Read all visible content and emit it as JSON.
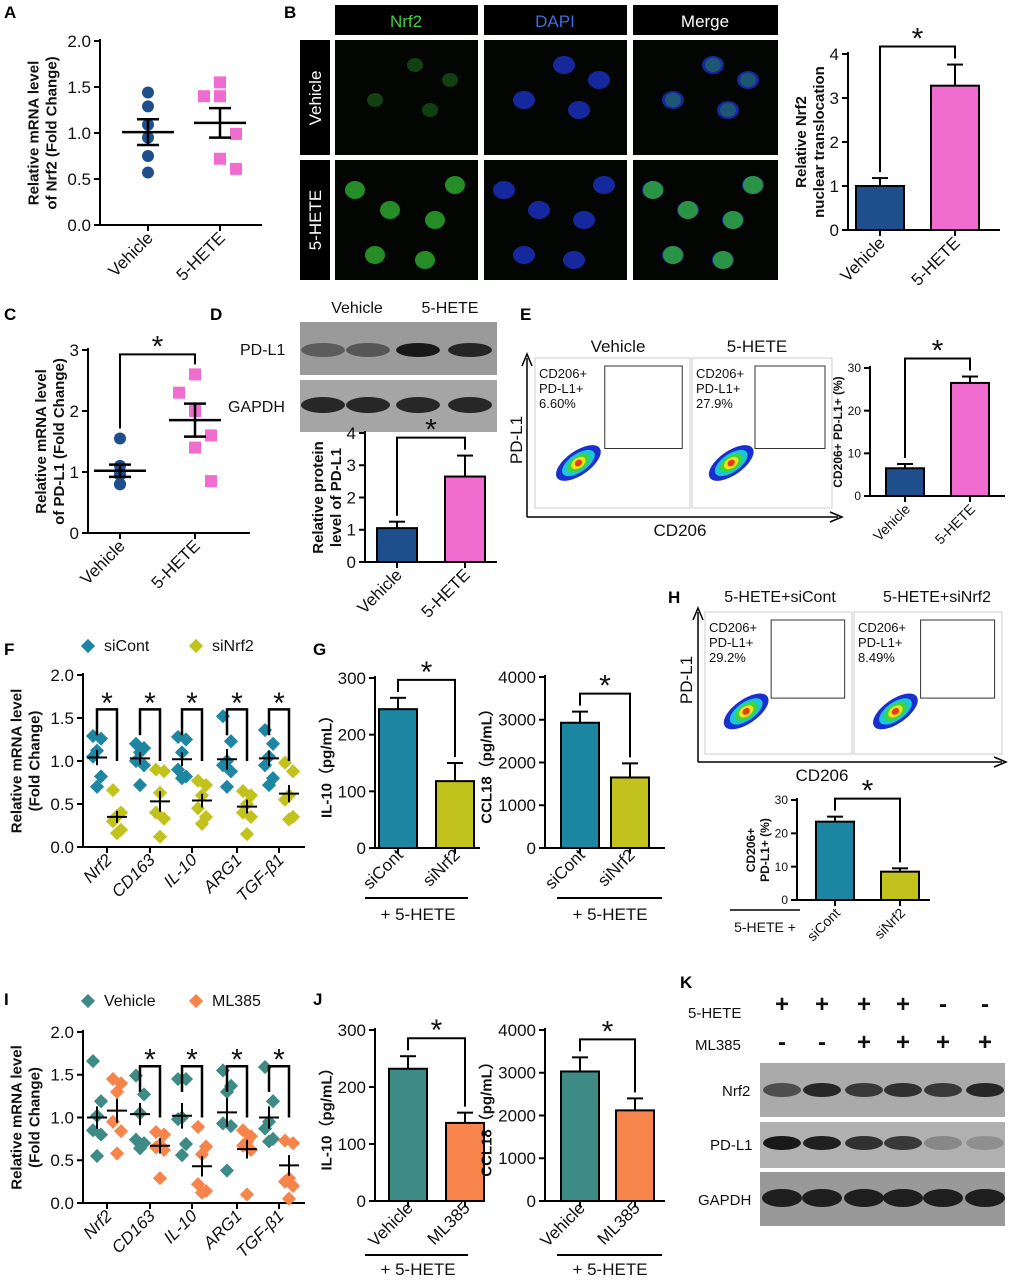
{
  "panel_letters": [
    "A",
    "B",
    "C",
    "D",
    "E",
    "F",
    "G",
    "H",
    "I",
    "J",
    "K"
  ],
  "colors": {
    "vehicle_navy": "#1f4e8c",
    "hete_pink": "#f06ccf",
    "sicont_teal": "#1c86a3",
    "sinrf2_olive": "#c2c21c",
    "veh_teal": "#3e8a84",
    "ml385_orange": "#f7844a"
  },
  "panel_b": {
    "columns": [
      "Nrf2",
      "DAPI",
      "Merge"
    ],
    "rows": [
      "Vehicle",
      "5-HETE"
    ]
  },
  "panel_d": {
    "lanes": [
      "Vehicle",
      "5-HETE"
    ],
    "bands": [
      "PD-L1",
      "GAPDH"
    ]
  },
  "panel_e": {
    "samples": [
      "Vehicle",
      "5-HETE"
    ],
    "y_axis": "PD-L1",
    "x_axis": "CD206",
    "gates": [
      {
        "l1": "CD206+",
        "l2": "PD-L1+",
        "pct": "6.60%"
      },
      {
        "l1": "CD206+",
        "l2": "PD-L1+",
        "pct": "27.9%"
      }
    ]
  },
  "panel_g": {
    "treatment": "+ 5-HETE"
  },
  "panel_h": {
    "samples": [
      "5-HETE+siCont",
      "5-HETE+siNrf2"
    ],
    "y_axis": "PD-L1",
    "x_axis": "CD206",
    "gates": [
      {
        "l1": "CD206+",
        "l2": "PD-L1+",
        "pct": "29.2%"
      },
      {
        "l1": "CD206+",
        "l2": "PD-L1+",
        "pct": "8.49%"
      }
    ],
    "treatment": "5-HETE +"
  },
  "panel_j": {
    "treatment": "+ 5-HETE"
  },
  "panel_k": {
    "row_labels": [
      "5-HETE",
      "ML385"
    ],
    "rows": [
      [
        "+",
        "+",
        "+",
        "+",
        "-",
        "-"
      ],
      [
        "-",
        "-",
        "+",
        "+",
        "+",
        "+"
      ]
    ],
    "bands": [
      "Nrf2",
      "PD-L1",
      "GAPDH"
    ]
  },
  "chart_data": [
    {
      "panel": "A",
      "type": "scatter",
      "ylabel": [
        "Relative mRNA level",
        "of Nrf2 (Fold Change)"
      ],
      "ylim": [
        0,
        2
      ],
      "yticks": [
        "0.0",
        "0.5",
        "1.0",
        "1.5",
        "2.0"
      ],
      "categories": [
        "Vehicle",
        "5-HETE"
      ],
      "series": [
        {
          "points": [
            1.44,
            1.29,
            1.09,
            0.95,
            0.75,
            0.57
          ],
          "mean": 1.01,
          "sem": 0.14
        },
        {
          "points": [
            1.55,
            1.4,
            1.4,
            0.99,
            0.72,
            0.61
          ],
          "mean": 1.11,
          "sem": 0.16
        }
      ],
      "significance": []
    },
    {
      "panel": "B",
      "type": "bar",
      "ylabel": [
        "Relative Nrf2",
        "nuclear translocation"
      ],
      "ylim": [
        0,
        4
      ],
      "yticks": [
        "0",
        "1",
        "2",
        "3",
        "4"
      ],
      "categories": [
        "Vehicle",
        "5-HETE"
      ],
      "values": [
        1.0,
        3.28
      ],
      "errors": [
        0.18,
        0.48
      ],
      "significance": [
        "*"
      ]
    },
    {
      "panel": "C",
      "type": "scatter",
      "ylabel": [
        "Relative mRNA level",
        "of PD-L1 (Fold Change)"
      ],
      "ylim": [
        0,
        3
      ],
      "yticks": [
        "0",
        "1",
        "2",
        "3"
      ],
      "categories": [
        "Vehicle",
        "5-HETE"
      ],
      "series": [
        {
          "points": [
            1.55,
            1.1,
            1.0,
            0.95,
            0.8,
            0.8
          ],
          "mean": 1.02,
          "sem": 0.1
        },
        {
          "points": [
            2.6,
            2.3,
            2.0,
            1.6,
            1.4,
            0.85
          ],
          "mean": 1.85,
          "sem": 0.27
        }
      ],
      "significance": [
        "*"
      ]
    },
    {
      "panel": "D",
      "type": "bar",
      "ylabel": [
        "Relative protein",
        "level of PD-L1"
      ],
      "ylim": [
        0,
        4
      ],
      "yticks": [
        "0",
        "1",
        "2",
        "3",
        "4"
      ],
      "categories": [
        "Vehicle",
        "5-HETE"
      ],
      "values": [
        1.05,
        2.65
      ],
      "errors": [
        0.2,
        0.65
      ],
      "significance": [
        "*"
      ]
    },
    {
      "panel": "E",
      "type": "bar",
      "ylabel": [
        "CD206+ PD-L1+ (%)"
      ],
      "ylim": [
        0,
        30
      ],
      "yticks": [
        "0",
        "10",
        "20",
        "30"
      ],
      "categories": [
        "Vehicle",
        "5-HETE"
      ],
      "values": [
        6.5,
        26.5
      ],
      "errors": [
        1.0,
        1.5
      ],
      "significance": [
        "*"
      ]
    },
    {
      "panel": "F",
      "type": "grouped_scatter",
      "ylabel": [
        "Relative mRNA level",
        "(Fold Change)"
      ],
      "ylim": [
        0,
        2
      ],
      "yticks": [
        "0.0",
        "0.5",
        "1.0",
        "1.5",
        "2.0"
      ],
      "categories": [
        "Nrf2",
        "CD163",
        "IL-10",
        "ARG1",
        "TGF-β1"
      ],
      "series": [
        {
          "name": "siCont",
          "points": [
            [
              1.29,
              1.26,
              1.12,
              1.05,
              0.82,
              0.7
            ],
            [
              1.2,
              1.15,
              1.1,
              1.0,
              0.95,
              0.72
            ],
            [
              1.28,
              1.25,
              1.1,
              0.9,
              0.82,
              0.8
            ],
            [
              1.52,
              1.23,
              1.0,
              0.95,
              0.88,
              0.7
            ],
            [
              1.36,
              1.2,
              1.05,
              0.95,
              0.8,
              0.72
            ]
          ],
          "means": [
            1.04,
            1.03,
            1.02,
            1.02,
            1.03
          ],
          "sems": [
            0.09,
            0.07,
            0.08,
            0.12,
            0.09
          ]
        },
        {
          "name": "siNrf2",
          "points": [
            [
              0.66,
              0.4,
              0.36,
              0.3,
              0.2,
              0.16
            ],
            [
              0.9,
              0.88,
              0.63,
              0.4,
              0.33,
              0.12
            ],
            [
              0.77,
              0.72,
              0.6,
              0.45,
              0.35,
              0.27
            ],
            [
              0.65,
              0.6,
              0.5,
              0.4,
              0.35,
              0.15
            ],
            [
              0.98,
              0.88,
              0.6,
              0.55,
              0.35,
              0.32
            ]
          ],
          "means": [
            0.35,
            0.53,
            0.54,
            0.47,
            0.62
          ],
          "sems": [
            0.07,
            0.12,
            0.08,
            0.08,
            0.1
          ]
        }
      ],
      "significance": [
        "*",
        "*",
        "*",
        "*",
        "*"
      ]
    },
    {
      "panel": "G",
      "type": "bar",
      "ylabel": [
        "IL-10（pg/mL）"
      ],
      "ylim": [
        0,
        300
      ],
      "yticks": [
        "0",
        "100",
        "200",
        "300"
      ],
      "categories": [
        "siCont",
        "siNrf2"
      ],
      "values": [
        245,
        118
      ],
      "errors": [
        20,
        32
      ],
      "significance": [
        "*"
      ]
    },
    {
      "panel": "G",
      "type": "bar",
      "ylabel": [
        "CCL18（pg/mL）"
      ],
      "ylim": [
        0,
        4000
      ],
      "yticks": [
        "0",
        "1000",
        "2000",
        "3000",
        "4000"
      ],
      "categories": [
        "siCont",
        "siNrf2"
      ],
      "values": [
        2930,
        1650
      ],
      "errors": [
        260,
        330
      ],
      "significance": [
        "*"
      ]
    },
    {
      "panel": "H",
      "type": "bar",
      "ylabel": [
        "CD206+",
        "PD-L1+ (%)"
      ],
      "ylim": [
        0,
        30
      ],
      "yticks": [
        "0",
        "10",
        "20",
        "30"
      ],
      "categories": [
        "siCont",
        "siNrf2"
      ],
      "values": [
        23.5,
        8.5
      ],
      "errors": [
        1.5,
        1.0
      ],
      "significance": [
        "*"
      ]
    },
    {
      "panel": "I",
      "type": "grouped_scatter",
      "ylabel": [
        "Relative mRNA level",
        "(Fold Change)"
      ],
      "ylim": [
        0,
        2
      ],
      "yticks": [
        "0.0",
        "0.5",
        "1.0",
        "1.5",
        "2.0"
      ],
      "categories": [
        "Nrf2",
        "CD163",
        "IL-10",
        "ARG1",
        "TGF-β1"
      ],
      "series": [
        {
          "name": "Vehicle",
          "points": [
            [
              1.66,
              1.19,
              1.02,
              0.85,
              0.8,
              0.55
            ],
            [
              1.49,
              1.27,
              1.05,
              0.74,
              0.7,
              0.64
            ],
            [
              1.45,
              1.45,
              1.0,
              0.98,
              0.69,
              0.56
            ],
            [
              1.55,
              1.37,
              1.3,
              0.93,
              0.9,
              0.38
            ],
            [
              1.59,
              1.19,
              0.95,
              0.87,
              0.75,
              0.72
            ]
          ],
          "means": [
            1.0,
            1.04,
            1.02,
            1.06,
            1.0
          ],
          "sems": [
            0.13,
            0.13,
            0.15,
            0.17,
            0.13
          ]
        },
        {
          "name": "ML385",
          "points": [
            [
              1.45,
              1.4,
              1.3,
              0.95,
              0.84,
              0.58
            ],
            [
              0.83,
              0.8,
              0.68,
              0.65,
              0.62,
              0.29
            ],
            [
              0.89,
              0.66,
              0.57,
              0.22,
              0.14,
              0.12
            ],
            [
              0.85,
              0.78,
              0.72,
              0.67,
              0.62,
              0.1
            ],
            [
              0.73,
              0.7,
              0.29,
              0.25,
              0.2,
              0.05
            ]
          ],
          "means": [
            1.08,
            0.67,
            0.43,
            0.63,
            0.44
          ],
          "sems": [
            0.14,
            0.09,
            0.12,
            0.11,
            0.12
          ]
        }
      ],
      "significance": [
        "",
        "*",
        "*",
        "*",
        "*"
      ]
    },
    {
      "panel": "J",
      "type": "bar",
      "ylabel": [
        "IL-10（pg/mL）"
      ],
      "ylim": [
        0,
        300
      ],
      "yticks": [
        "0",
        "100",
        "200",
        "300"
      ],
      "categories": [
        "Vehicle",
        "ML385"
      ],
      "values": [
        232,
        137
      ],
      "errors": [
        22,
        18
      ],
      "significance": [
        "*"
      ]
    },
    {
      "panel": "J",
      "type": "bar",
      "ylabel": [
        "CCL18（pg/mL）"
      ],
      "ylim": [
        0,
        4000
      ],
      "yticks": [
        "0",
        "1000",
        "2000",
        "3000",
        "4000"
      ],
      "categories": [
        "Vehicle",
        "ML385"
      ],
      "values": [
        3030,
        2120
      ],
      "errors": [
        330,
        280
      ],
      "significance": [
        "*"
      ]
    }
  ]
}
